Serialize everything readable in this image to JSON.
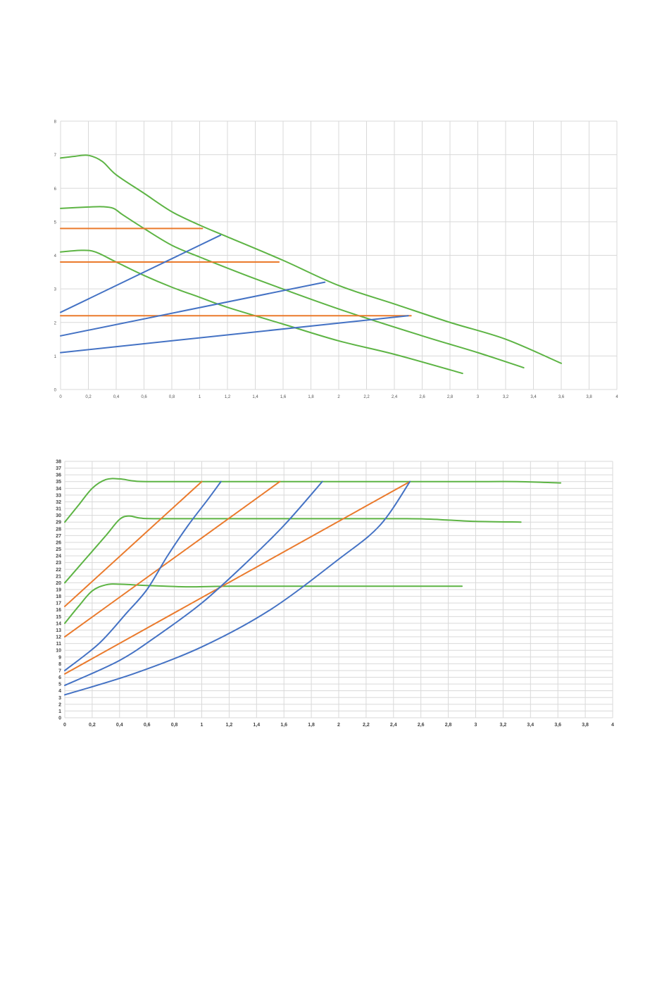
{
  "colors": {
    "green": "#5db444",
    "orange": "#ea7a2c",
    "blue": "#4472c4",
    "grid": "#d9d9d9"
  },
  "chart_data": [
    {
      "type": "line",
      "xlim": [
        0,
        4
      ],
      "ylim": [
        0,
        8
      ],
      "x_ticks": [
        "0",
        "0,2",
        "0,4",
        "0,6",
        "0,8",
        "1",
        "1,2",
        "1,4",
        "1,6",
        "1,8",
        "2",
        "2,2",
        "2,4",
        "2,6",
        "2,8",
        "3",
        "3,2",
        "3,4",
        "3,6",
        "3,8",
        "4"
      ],
      "y_ticks": [
        "0",
        "1",
        "2",
        "3",
        "4",
        "5",
        "6",
        "7",
        "8"
      ],
      "grid": true,
      "series": [
        {
          "color": "green",
          "points": [
            [
              0,
              6.9
            ],
            [
              0.1,
              6.95
            ],
            [
              0.2,
              6.98
            ],
            [
              0.3,
              6.8
            ],
            [
              0.4,
              6.4
            ],
            [
              0.6,
              5.85
            ],
            [
              0.8,
              5.3
            ],
            [
              1,
              4.9
            ],
            [
              1.2,
              4.55
            ],
            [
              1.6,
              3.85
            ],
            [
              2,
              3.1
            ],
            [
              2.4,
              2.55
            ],
            [
              2.8,
              2.0
            ],
            [
              3.2,
              1.5
            ],
            [
              3.6,
              0.78
            ]
          ]
        },
        {
          "color": "green",
          "points": [
            [
              0,
              5.4
            ],
            [
              0.2,
              5.44
            ],
            [
              0.3,
              5.45
            ],
            [
              0.38,
              5.4
            ],
            [
              0.45,
              5.2
            ],
            [
              0.6,
              4.8
            ],
            [
              0.8,
              4.3
            ],
            [
              1,
              3.95
            ],
            [
              1.4,
              3.3
            ],
            [
              2,
              2.4
            ],
            [
              2.6,
              1.6
            ],
            [
              3.0,
              1.1
            ],
            [
              3.33,
              0.65
            ]
          ]
        },
        {
          "color": "green",
          "points": [
            [
              0,
              4.1
            ],
            [
              0.15,
              4.15
            ],
            [
              0.25,
              4.1
            ],
            [
              0.4,
              3.8
            ],
            [
              0.6,
              3.4
            ],
            [
              0.8,
              3.05
            ],
            [
              1,
              2.75
            ],
            [
              1.2,
              2.45
            ],
            [
              1.6,
              1.95
            ],
            [
              2,
              1.45
            ],
            [
              2.4,
              1.05
            ],
            [
              2.89,
              0.48
            ]
          ]
        },
        {
          "color": "orange",
          "points": [
            [
              0,
              4.8
            ],
            [
              1.02,
              4.8
            ]
          ]
        },
        {
          "color": "orange",
          "points": [
            [
              0,
              3.8
            ],
            [
              1.57,
              3.8
            ]
          ]
        },
        {
          "color": "orange",
          "points": [
            [
              0,
              2.2
            ],
            [
              2.52,
              2.2
            ]
          ]
        },
        {
          "color": "blue",
          "points": [
            [
              0,
              2.3
            ],
            [
              1.15,
              4.6
            ]
          ]
        },
        {
          "color": "blue",
          "points": [
            [
              0,
              1.6
            ],
            [
              1.9,
              3.2
            ]
          ]
        },
        {
          "color": "blue",
          "points": [
            [
              0,
              1.1
            ],
            [
              2.5,
              2.2
            ]
          ]
        }
      ]
    },
    {
      "type": "line",
      "xlim": [
        0,
        4
      ],
      "ylim": [
        0,
        38
      ],
      "x_ticks": [
        "0",
        "0,2",
        "0,4",
        "0,6",
        "0,8",
        "1",
        "1,2",
        "1,4",
        "1,6",
        "1,8",
        "2",
        "2,2",
        "2,4",
        "2,6",
        "2,8",
        "3",
        "3,2",
        "3,4",
        "3,6",
        "3,8",
        "4"
      ],
      "y_ticks": [
        "0",
        "1",
        "2",
        "3",
        "4",
        "5",
        "6",
        "7",
        "8",
        "9",
        "10",
        "11",
        "12",
        "13",
        "14",
        "15",
        "16",
        "17",
        "18",
        "19",
        "20",
        "21",
        "22",
        "23",
        "24",
        "25",
        "26",
        "27",
        "28",
        "29",
        "30",
        "31",
        "32",
        "33",
        "34",
        "35",
        "36",
        "37",
        "38"
      ],
      "grid": true,
      "series": [
        {
          "color": "green",
          "points": [
            [
              0,
              29
            ],
            [
              0.1,
              31.5
            ],
            [
              0.2,
              34
            ],
            [
              0.3,
              35.3
            ],
            [
              0.4,
              35.4
            ],
            [
              0.5,
              35.1
            ],
            [
              0.6,
              35
            ],
            [
              1,
              35
            ],
            [
              2,
              35
            ],
            [
              3,
              35
            ],
            [
              3.3,
              35
            ],
            [
              3.62,
              34.8
            ]
          ]
        },
        {
          "color": "green",
          "points": [
            [
              0,
              20
            ],
            [
              0.15,
              23.5
            ],
            [
              0.3,
              27
            ],
            [
              0.4,
              29.4
            ],
            [
              0.47,
              29.9
            ],
            [
              0.55,
              29.6
            ],
            [
              0.7,
              29.5
            ],
            [
              1.5,
              29.5
            ],
            [
              2.5,
              29.5
            ],
            [
              2.8,
              29.3
            ],
            [
              3.0,
              29.1
            ],
            [
              3.33,
              29
            ]
          ]
        },
        {
          "color": "green",
          "points": [
            [
              0,
              14
            ],
            [
              0.1,
              16.5
            ],
            [
              0.2,
              18.8
            ],
            [
              0.3,
              19.7
            ],
            [
              0.4,
              19.8
            ],
            [
              0.6,
              19.6
            ],
            [
              0.9,
              19.4
            ],
            [
              1.2,
              19.5
            ],
            [
              2,
              19.5
            ],
            [
              2.9,
              19.5
            ]
          ]
        },
        {
          "color": "orange",
          "points": [
            [
              0,
              16.5
            ],
            [
              1.0,
              35
            ]
          ]
        },
        {
          "color": "orange",
          "points": [
            [
              0,
              12
            ],
            [
              1.57,
              35
            ]
          ]
        },
        {
          "color": "orange",
          "points": [
            [
              0,
              6.5
            ],
            [
              2.52,
              35
            ]
          ]
        },
        {
          "color": "blue",
          "points": [
            [
              0,
              7
            ],
            [
              0.25,
              11
            ],
            [
              0.45,
              15.5
            ],
            [
              0.6,
              19
            ],
            [
              0.75,
              24
            ],
            [
              0.9,
              28.5
            ],
            [
              1.05,
              32.5
            ],
            [
              1.14,
              35
            ]
          ]
        },
        {
          "color": "blue",
          "points": [
            [
              0,
              4.8
            ],
            [
              0.4,
              8.5
            ],
            [
              0.7,
              12.5
            ],
            [
              1.0,
              17
            ],
            [
              1.3,
              22.5
            ],
            [
              1.6,
              28.5
            ],
            [
              1.88,
              35
            ]
          ]
        },
        {
          "color": "blue",
          "points": [
            [
              0,
              3.4
            ],
            [
              0.5,
              6.5
            ],
            [
              1.0,
              10.5
            ],
            [
              1.5,
              16
            ],
            [
              2.0,
              23.5
            ],
            [
              2.3,
              28.5
            ],
            [
              2.52,
              35
            ]
          ]
        }
      ]
    }
  ]
}
